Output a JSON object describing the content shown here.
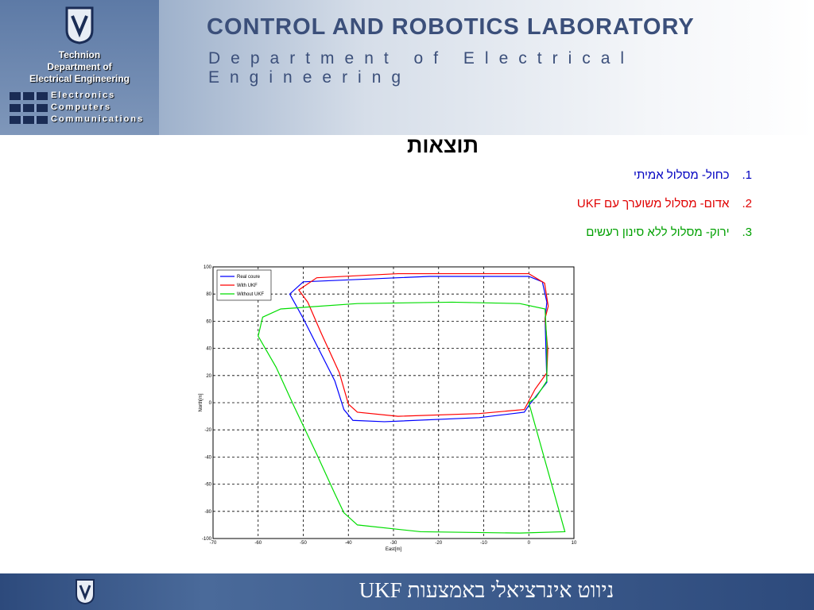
{
  "header": {
    "institution": [
      "Technion",
      "Department of",
      "Electrical Engineering"
    ],
    "divisions": [
      "Electronics",
      "Computers",
      "Communications"
    ],
    "lab": "CONTROL AND ROBOTICS LABORATORY",
    "department": "Department of Electrical Engineering"
  },
  "title": "תוצאות",
  "list": [
    {
      "number": "1.",
      "text": "כחול- מסלול אמיתי",
      "color": "#0000c0"
    },
    {
      "number": "2.",
      "text": "אדום- מסלול משוערך עם UKF",
      "color": "#e00000"
    },
    {
      "number": "3.",
      "text": "ירוק- מסלול ללא סינון רעשים",
      "color": "#00a000"
    }
  ],
  "chart_data": {
    "type": "line",
    "xlabel": "East[m]",
    "ylabel": "North[m]",
    "xlim": [
      -70,
      10
    ],
    "ylim": [
      -100,
      100
    ],
    "xticks": [
      -70,
      -60,
      -50,
      -40,
      -30,
      -20,
      -10,
      0,
      10
    ],
    "yticks": [
      -100,
      -80,
      -60,
      -40,
      -20,
      0,
      20,
      40,
      60,
      80,
      100
    ],
    "grid": true,
    "legend": "upper left",
    "series": [
      {
        "name": "Real coure",
        "color": "#0000ff",
        "x": [
          0,
          4,
          3.6,
          4,
          3,
          0,
          -22,
          -50,
          -53,
          -50,
          -43,
          -41,
          -39,
          -32,
          -11,
          -1,
          0
        ],
        "y": [
          -2,
          15,
          62,
          74,
          89,
          93,
          93,
          89,
          80,
          62,
          16,
          -5,
          -13,
          -14,
          -11,
          -7,
          -2
        ]
      },
      {
        "name": "With UKF",
        "color": "#ff0000",
        "x": [
          -1,
          1.4,
          4,
          4.2,
          3.6,
          4.3,
          3.5,
          0,
          -29,
          -47,
          -51,
          -49,
          -46,
          -42,
          -40,
          -38,
          -29,
          -11,
          -1
        ],
        "y": [
          -5,
          10,
          22,
          39,
          62,
          71,
          88,
          95,
          95,
          92,
          83,
          74,
          51,
          22,
          -1,
          -7,
          -10,
          -8,
          -5
        ]
      },
      {
        "name": "Without UKF",
        "color": "#00dd00",
        "x": [
          8,
          -2,
          -24,
          -38,
          -41,
          -43,
          -47,
          -52,
          -56,
          -60,
          -59,
          -55,
          -38,
          -17,
          -2,
          3.6,
          4,
          4,
          1.6,
          0
        ],
        "y": [
          -95,
          -96,
          -95,
          -90,
          -81,
          -67,
          -38,
          -3,
          26,
          49,
          63,
          69,
          73,
          74,
          73,
          69,
          43,
          16,
          4,
          0
        ]
      }
    ]
  },
  "footer": "ניווט אינרציאלי באמצעות UKF"
}
